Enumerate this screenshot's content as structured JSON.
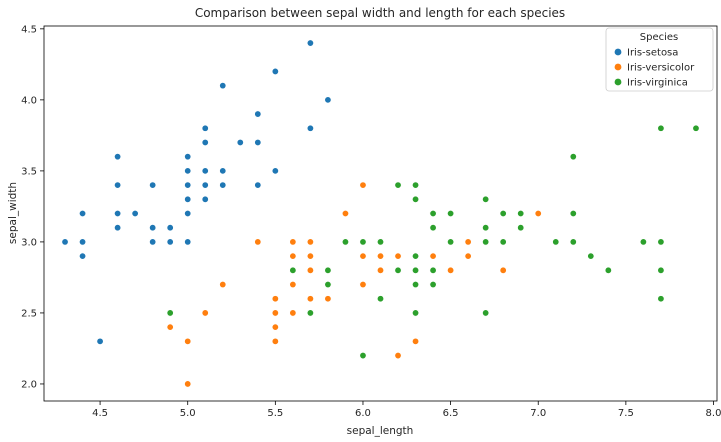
{
  "chart_data": {
    "type": "scatter",
    "title": "Comparison between sepal width and length for each species",
    "xlabel": "sepal_length",
    "ylabel": "sepal_width",
    "xlim": [
      4.18,
      8.02
    ],
    "ylim": [
      1.88,
      4.52
    ],
    "xticks": [
      4.5,
      5.0,
      5.5,
      6.0,
      6.5,
      7.0,
      7.5,
      8.0
    ],
    "xtick_labels": [
      "4.5",
      "5.0",
      "5.5",
      "6.0",
      "6.5",
      "7.0",
      "7.5",
      "8.0"
    ],
    "yticks": [
      2.0,
      2.5,
      3.0,
      3.5,
      4.0,
      4.5
    ],
    "ytick_labels": [
      "2.0",
      "2.5",
      "3.0",
      "3.5",
      "4.0",
      "4.5"
    ],
    "grid": false,
    "legend": {
      "title": "Species",
      "placement": "top-right"
    },
    "series": [
      {
        "name": "Iris-setosa",
        "color": "#1f77b4",
        "points": [
          [
            4.3,
            3.0
          ],
          [
            4.4,
            2.9
          ],
          [
            4.4,
            3.0
          ],
          [
            4.4,
            3.2
          ],
          [
            4.5,
            2.3
          ],
          [
            4.6,
            3.1
          ],
          [
            4.6,
            3.2
          ],
          [
            4.6,
            3.4
          ],
          [
            4.6,
            3.6
          ],
          [
            4.7,
            3.2
          ],
          [
            4.8,
            3.0
          ],
          [
            4.8,
            3.1
          ],
          [
            4.8,
            3.4
          ],
          [
            4.9,
            3.0
          ],
          [
            4.9,
            3.1
          ],
          [
            5.0,
            3.0
          ],
          [
            5.0,
            3.2
          ],
          [
            5.0,
            3.3
          ],
          [
            5.0,
            3.4
          ],
          [
            5.0,
            3.5
          ],
          [
            5.0,
            3.6
          ],
          [
            5.1,
            3.3
          ],
          [
            5.1,
            3.4
          ],
          [
            5.1,
            3.5
          ],
          [
            5.1,
            3.7
          ],
          [
            5.1,
            3.8
          ],
          [
            5.2,
            3.4
          ],
          [
            5.2,
            3.5
          ],
          [
            5.2,
            4.1
          ],
          [
            5.3,
            3.7
          ],
          [
            5.4,
            3.4
          ],
          [
            5.4,
            3.7
          ],
          [
            5.4,
            3.9
          ],
          [
            5.5,
            3.5
          ],
          [
            5.5,
            4.2
          ],
          [
            5.7,
            3.8
          ],
          [
            5.7,
            4.4
          ],
          [
            5.8,
            4.0
          ]
        ]
      },
      {
        "name": "Iris-versicolor",
        "color": "#ff7f0e",
        "points": [
          [
            4.9,
            2.4
          ],
          [
            5.0,
            2.0
          ],
          [
            5.0,
            2.3
          ],
          [
            5.1,
            2.5
          ],
          [
            5.2,
            2.7
          ],
          [
            5.4,
            3.0
          ],
          [
            5.5,
            2.3
          ],
          [
            5.5,
            2.4
          ],
          [
            5.5,
            2.5
          ],
          [
            5.5,
            2.6
          ],
          [
            5.6,
            2.5
          ],
          [
            5.6,
            2.7
          ],
          [
            5.6,
            2.9
          ],
          [
            5.6,
            3.0
          ],
          [
            5.7,
            2.6
          ],
          [
            5.7,
            2.8
          ],
          [
            5.7,
            2.9
          ],
          [
            5.7,
            3.0
          ],
          [
            5.8,
            2.6
          ],
          [
            5.8,
            2.7
          ],
          [
            5.9,
            3.0
          ],
          [
            5.9,
            3.2
          ],
          [
            6.0,
            2.2
          ],
          [
            6.0,
            2.7
          ],
          [
            6.0,
            2.9
          ],
          [
            6.0,
            3.4
          ],
          [
            6.1,
            2.8
          ],
          [
            6.1,
            2.9
          ],
          [
            6.1,
            3.0
          ],
          [
            6.2,
            2.2
          ],
          [
            6.2,
            2.9
          ],
          [
            6.3,
            2.3
          ],
          [
            6.3,
            2.5
          ],
          [
            6.3,
            3.3
          ],
          [
            6.4,
            2.9
          ],
          [
            6.4,
            3.2
          ],
          [
            6.5,
            2.8
          ],
          [
            6.6,
            2.9
          ],
          [
            6.6,
            3.0
          ],
          [
            6.7,
            3.0
          ],
          [
            6.7,
            3.1
          ],
          [
            6.8,
            2.8
          ],
          [
            6.9,
            3.1
          ],
          [
            7.0,
            3.2
          ]
        ]
      },
      {
        "name": "Iris-virginica",
        "color": "#2ca02c",
        "points": [
          [
            4.9,
            2.5
          ],
          [
            5.6,
            2.8
          ],
          [
            5.7,
            2.5
          ],
          [
            5.8,
            2.7
          ],
          [
            5.8,
            2.8
          ],
          [
            5.9,
            3.0
          ],
          [
            6.0,
            2.2
          ],
          [
            6.0,
            3.0
          ],
          [
            6.1,
            2.6
          ],
          [
            6.1,
            3.0
          ],
          [
            6.2,
            2.8
          ],
          [
            6.2,
            3.4
          ],
          [
            6.3,
            2.5
          ],
          [
            6.3,
            2.7
          ],
          [
            6.3,
            2.8
          ],
          [
            6.3,
            2.9
          ],
          [
            6.3,
            3.3
          ],
          [
            6.3,
            3.4
          ],
          [
            6.4,
            2.7
          ],
          [
            6.4,
            2.8
          ],
          [
            6.4,
            3.1
          ],
          [
            6.4,
            3.2
          ],
          [
            6.5,
            3.0
          ],
          [
            6.5,
            3.2
          ],
          [
            6.7,
            2.5
          ],
          [
            6.7,
            3.0
          ],
          [
            6.7,
            3.1
          ],
          [
            6.7,
            3.3
          ],
          [
            6.8,
            3.0
          ],
          [
            6.8,
            3.2
          ],
          [
            6.9,
            3.1
          ],
          [
            6.9,
            3.2
          ],
          [
            7.1,
            3.0
          ],
          [
            7.2,
            3.0
          ],
          [
            7.2,
            3.2
          ],
          [
            7.2,
            3.6
          ],
          [
            7.3,
            2.9
          ],
          [
            7.4,
            2.8
          ],
          [
            7.6,
            3.0
          ],
          [
            7.7,
            2.6
          ],
          [
            7.7,
            2.8
          ],
          [
            7.7,
            3.0
          ],
          [
            7.7,
            3.8
          ],
          [
            7.9,
            3.8
          ]
        ]
      }
    ]
  }
}
